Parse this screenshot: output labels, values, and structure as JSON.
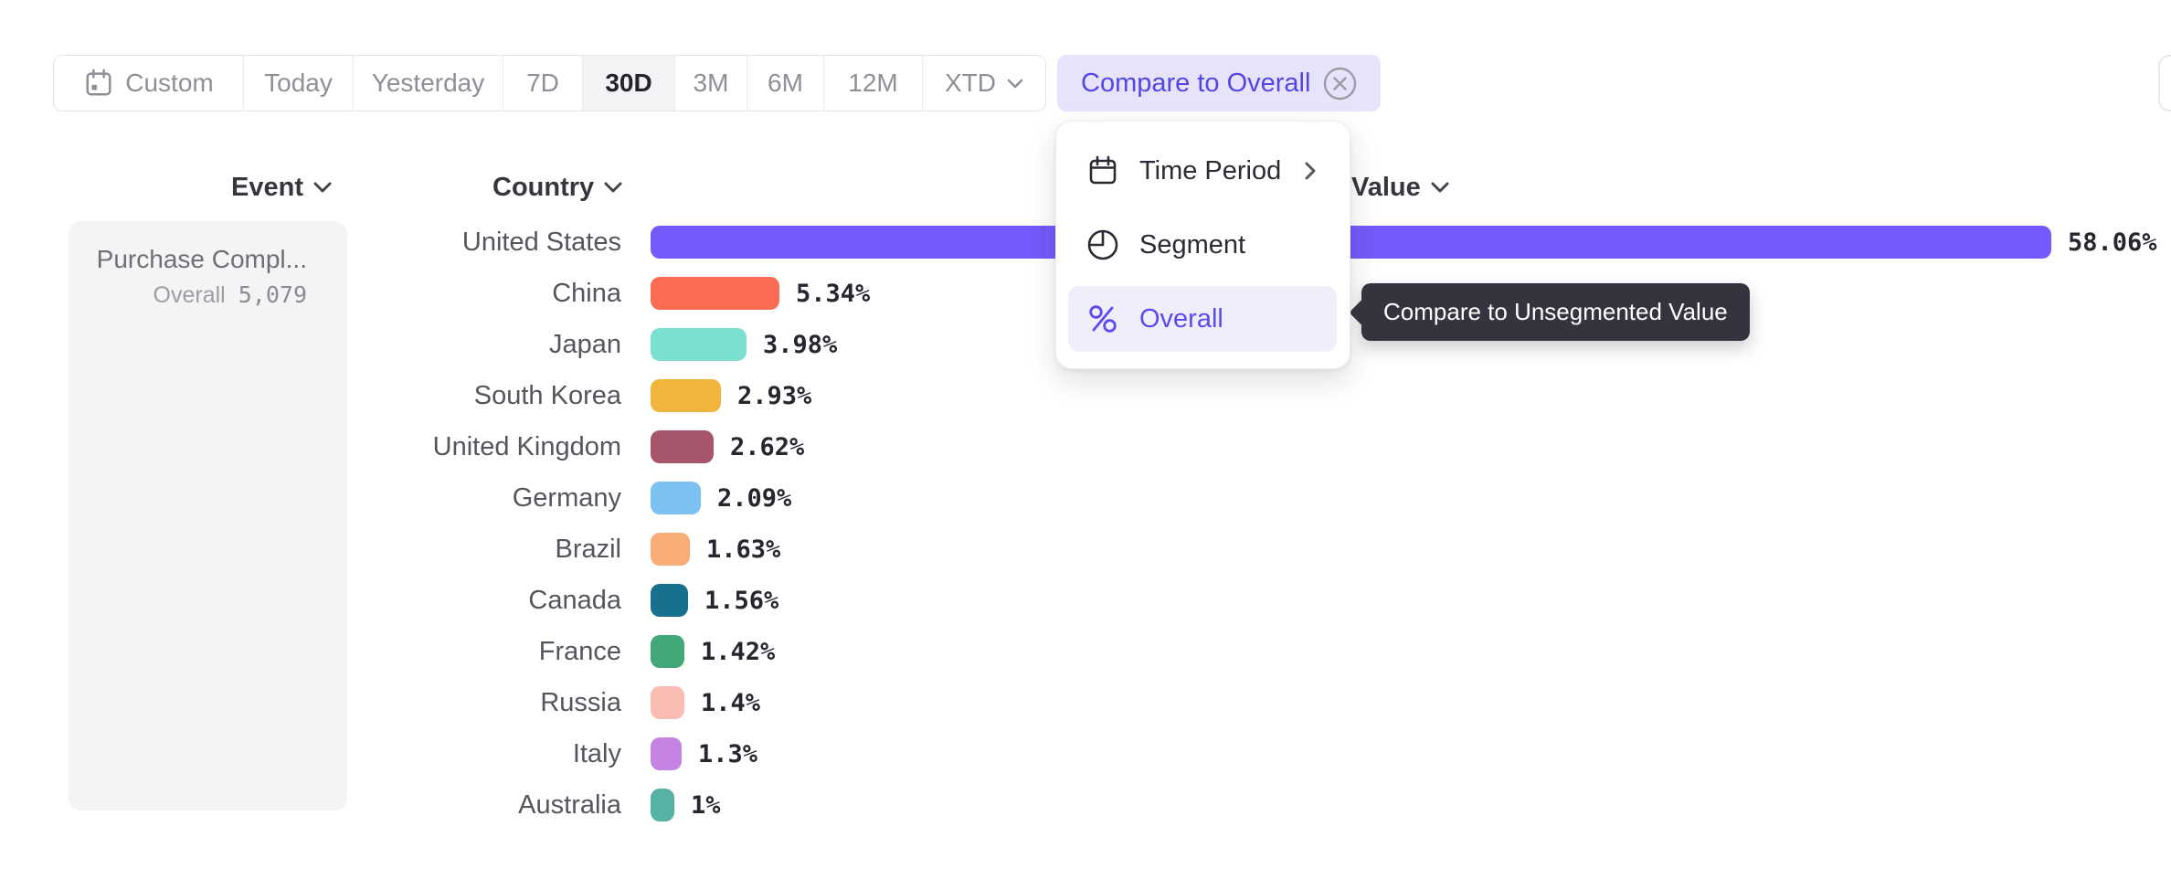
{
  "toolbar": {
    "segments": [
      {
        "label": "Custom",
        "icon": "calendar-icon",
        "active": false
      },
      {
        "label": "Today",
        "active": false
      },
      {
        "label": "Yesterday",
        "active": false
      },
      {
        "label": "7D",
        "active": false
      },
      {
        "label": "30D",
        "active": true
      },
      {
        "label": "3M",
        "active": false
      },
      {
        "label": "6M",
        "active": false
      },
      {
        "label": "12M",
        "active": false
      },
      {
        "label": "XTD",
        "active": false,
        "has_dropdown": true
      }
    ],
    "compare_chip_label": "Compare to Overall"
  },
  "columns": {
    "event": "Event",
    "country": "Country",
    "value": "Value"
  },
  "event_panel": {
    "event_name": "Purchase Compl...",
    "overall_label": "Overall",
    "overall_value": "5,079"
  },
  "menu": {
    "items": [
      {
        "icon": "calendar-icon",
        "label": "Time Period",
        "has_submenu": true,
        "selected": false
      },
      {
        "icon": "segment-icon",
        "label": "Segment",
        "has_submenu": false,
        "selected": false
      },
      {
        "icon": "percent-icon",
        "label": "Overall",
        "has_submenu": false,
        "selected": true
      }
    ]
  },
  "tooltip": {
    "text": "Compare to Unsegmented Value"
  },
  "chart_data": {
    "type": "bar",
    "orientation": "horizontal",
    "categories": [
      "United States",
      "China",
      "Japan",
      "South Korea",
      "United Kingdom",
      "Germany",
      "Brazil",
      "Canada",
      "France",
      "Russia",
      "Italy",
      "Australia"
    ],
    "values": [
      58.06,
      5.34,
      3.98,
      2.93,
      2.62,
      2.09,
      1.63,
      1.56,
      1.42,
      1.4,
      1.3,
      1
    ],
    "value_labels": [
      "58.06%",
      "5.34%",
      "3.98%",
      "2.93%",
      "2.62%",
      "2.09%",
      "1.63%",
      "1.56%",
      "1.42%",
      "1.4%",
      "1.3%",
      "1%"
    ],
    "colors": [
      "#7559FB",
      "#FA6B52",
      "#7CE0D1",
      "#F1B43C",
      "#A6556B",
      "#7DC0F2",
      "#F9AD76",
      "#16708E",
      "#43A877",
      "#F9BDB3",
      "#C584E4",
      "#55B2A4"
    ],
    "xlabel": "Value",
    "ylabel": "Country",
    "xlim": [
      0,
      58.06
    ],
    "grid": false,
    "legend": false
  },
  "accent_colors": {
    "primary": "#5546E4",
    "chip_bg": "#E6E3FB",
    "menu_highlight_bg": "#F1EEFC",
    "tooltip_bg": "#35343E"
  }
}
